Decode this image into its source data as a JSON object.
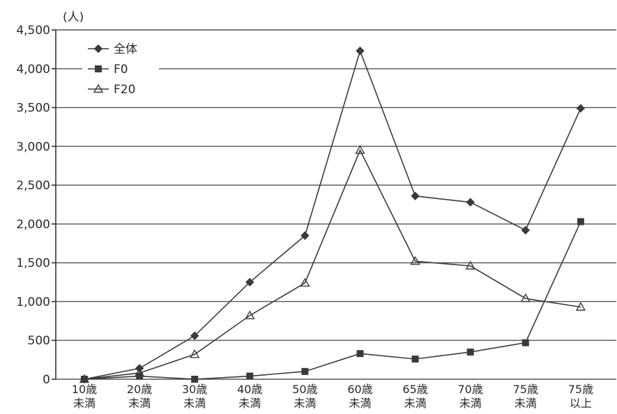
{
  "chart_data": {
    "type": "line",
    "unit_label": "(人)",
    "categories": [
      [
        "10歳",
        "未満"
      ],
      [
        "20歳",
        "未満"
      ],
      [
        "30歳",
        "未満"
      ],
      [
        "40歳",
        "未満"
      ],
      [
        "50歳",
        "未満"
      ],
      [
        "60歳",
        "未満"
      ],
      [
        "65歳",
        "未満"
      ],
      [
        "70歳",
        "未満"
      ],
      [
        "75歳",
        "未満"
      ],
      [
        "75歳",
        "以上"
      ]
    ],
    "ylim": [
      0,
      4500
    ],
    "yticks": [
      0,
      500,
      1000,
      1500,
      2000,
      2500,
      3000,
      3500,
      4000,
      4500
    ],
    "ytick_labels": [
      "0",
      "500",
      "1,000",
      "1,500",
      "2,000",
      "2,500",
      "3,000",
      "3,500",
      "4,000",
      "4,500"
    ],
    "grid": true,
    "legend_position": "top-left",
    "series": [
      {
        "name": "全体",
        "marker": "diamond",
        "values": [
          0,
          140,
          560,
          1250,
          1850,
          4230,
          2360,
          2280,
          1920,
          3490
        ]
      },
      {
        "name": "F0",
        "marker": "square",
        "values": [
          0,
          40,
          0,
          40,
          100,
          330,
          260,
          350,
          470,
          2030
        ]
      },
      {
        "name": "F20",
        "marker": "triangle",
        "values": [
          0,
          80,
          320,
          820,
          1240,
          2950,
          1520,
          1460,
          1040,
          930
        ]
      }
    ]
  }
}
